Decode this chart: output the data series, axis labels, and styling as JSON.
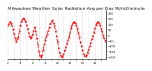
{
  "title": "Milwaukee Weather Solar Radiation Avg per Day W/m2/minute",
  "line_color": "#ff0000",
  "line_style": "--",
  "line_width": 0.8,
  "marker": ".",
  "marker_size": 1.5,
  "background_color": "#ffffff",
  "grid_color": "#999999",
  "ylim": [
    -220,
    220
  ],
  "yticks": [
    -200,
    -150,
    -100,
    -50,
    0,
    50,
    100,
    150,
    200
  ],
  "title_fontsize": 4.5,
  "tick_fontsize": 3.0,
  "x_values": [
    0,
    1,
    2,
    3,
    4,
    5,
    6,
    7,
    8,
    9,
    10,
    11,
    12,
    13,
    14,
    15,
    16,
    17,
    18,
    19,
    20,
    21,
    22,
    23,
    24,
    25,
    26,
    27,
    28,
    29,
    30,
    31,
    32,
    33,
    34,
    35,
    36,
    37,
    38,
    39,
    40,
    41,
    42,
    43,
    44,
    45,
    46,
    47,
    48,
    49,
    50,
    51,
    52,
    53,
    54,
    55,
    56,
    57,
    58,
    59,
    60,
    61,
    62,
    63,
    64,
    65,
    66,
    67,
    68,
    69,
    70,
    71,
    72,
    73,
    74,
    75,
    76,
    77,
    78,
    79,
    80,
    81,
    82,
    83,
    84,
    85,
    86,
    87,
    88,
    89,
    90,
    91,
    92,
    93,
    94,
    95
  ],
  "y_values": [
    80,
    100,
    120,
    110,
    80,
    50,
    10,
    -30,
    -60,
    -40,
    -20,
    30,
    80,
    120,
    140,
    150,
    140,
    120,
    90,
    60,
    20,
    -10,
    -30,
    -20,
    10,
    40,
    70,
    30,
    -30,
    -90,
    -150,
    -190,
    -200,
    -180,
    -140,
    -90,
    -50,
    -20,
    10,
    40,
    70,
    100,
    120,
    130,
    110,
    80,
    40,
    -10,
    -60,
    -120,
    -160,
    -190,
    -200,
    -190,
    -170,
    -140,
    -110,
    -80,
    -50,
    -20,
    20,
    60,
    90,
    110,
    120,
    110,
    90,
    60,
    20,
    -20,
    -60,
    -100,
    -140,
    -170,
    -190,
    -195,
    -180,
    -160,
    -130,
    -100,
    -70,
    -40,
    -10,
    20,
    60,
    90,
    110,
    120,
    110,
    90,
    60,
    30,
    -5,
    -30,
    -50,
    -60
  ],
  "vgrid_positions": [
    0,
    6,
    12,
    18,
    24,
    30,
    36,
    42,
    48,
    54,
    60,
    66,
    72,
    78,
    84,
    90
  ],
  "xlim": [
    0,
    95
  ]
}
